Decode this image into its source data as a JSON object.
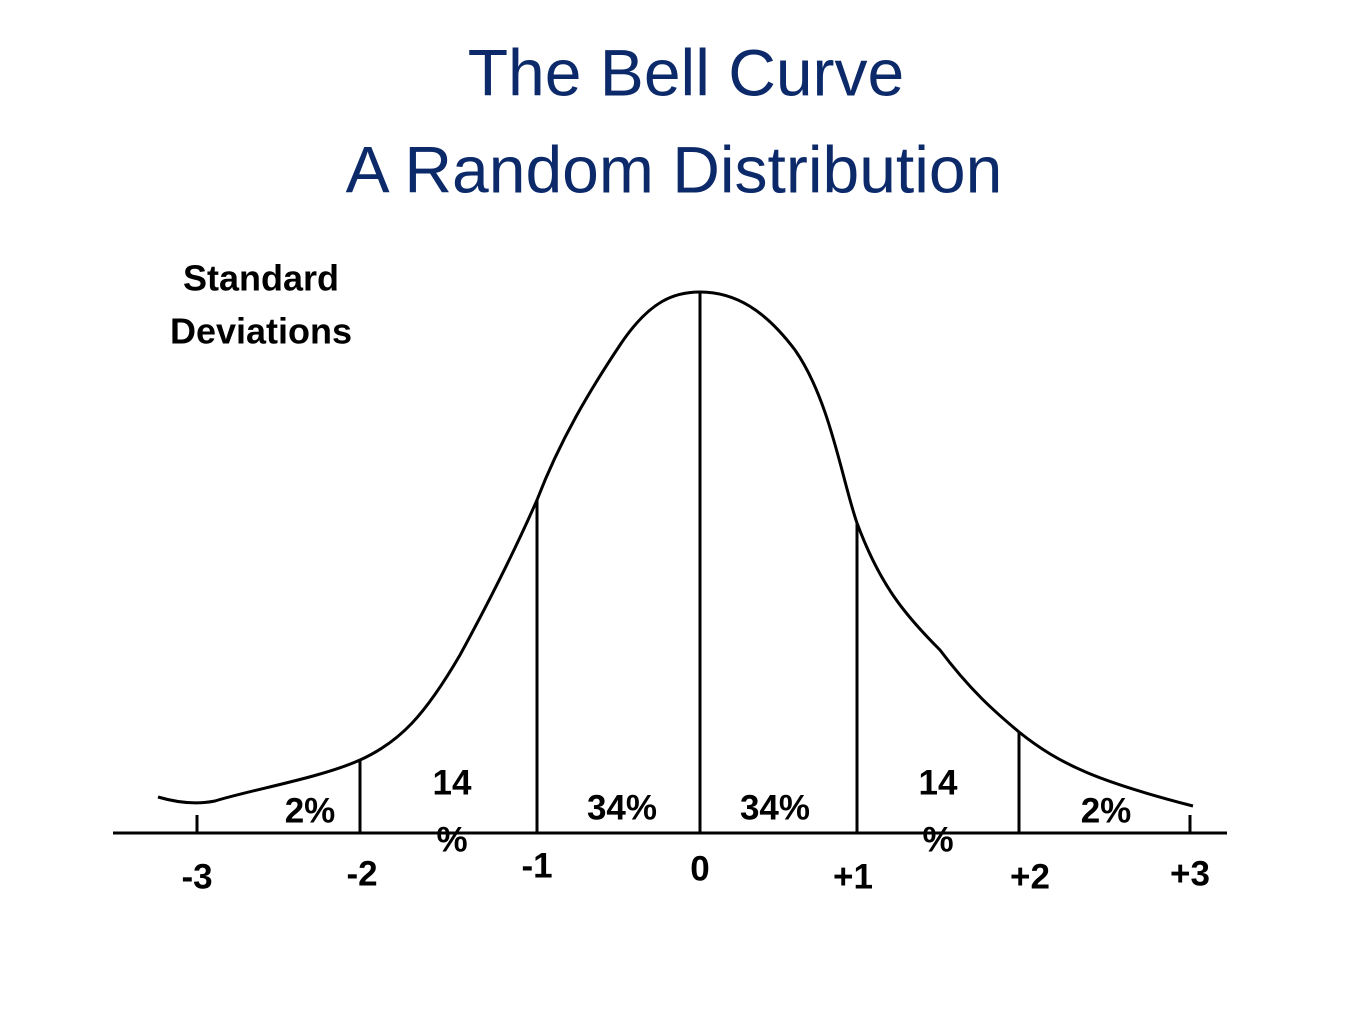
{
  "title": {
    "lines": [
      "The Bell Curve",
      "A Random Distribution"
    ]
  },
  "axis_note": {
    "lines": [
      "Standard",
      "Deviations"
    ]
  },
  "ticks": [
    "-3",
    "-2",
    "-1",
    "0",
    "+1",
    "+2",
    "+3"
  ],
  "segments": [
    {
      "lines": [
        "2%"
      ]
    },
    {
      "lines": [
        "14",
        "%"
      ]
    },
    {
      "lines": [
        "34%"
      ]
    },
    {
      "lines": [
        "34%"
      ]
    },
    {
      "lines": [
        "14",
        "%"
      ]
    },
    {
      "lines": [
        "2%"
      ]
    }
  ]
}
